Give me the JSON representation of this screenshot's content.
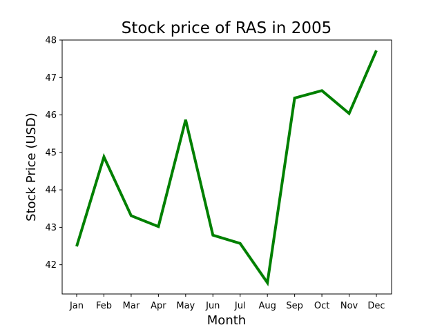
{
  "chart_data": {
    "type": "line",
    "title": "Stock price of RAS in 2005",
    "xlabel": "Month",
    "ylabel": "Stock Price (USD)",
    "categories": [
      "Jan",
      "Feb",
      "Mar",
      "Apr",
      "May",
      "Jun",
      "Jul",
      "Aug",
      "Sep",
      "Oct",
      "Nov",
      "Dec"
    ],
    "series": [
      {
        "values": [
          42.49,
          44.88,
          43.31,
          43.02,
          45.87,
          42.79,
          42.57,
          41.52,
          46.45,
          46.65,
          46.04,
          47.72
        ],
        "color": "#008000"
      }
    ],
    "ylim": [
      41.22,
      48.0
    ],
    "yticks": [
      42,
      43,
      44,
      45,
      46,
      47,
      48
    ],
    "grid": false,
    "legend": false
  }
}
